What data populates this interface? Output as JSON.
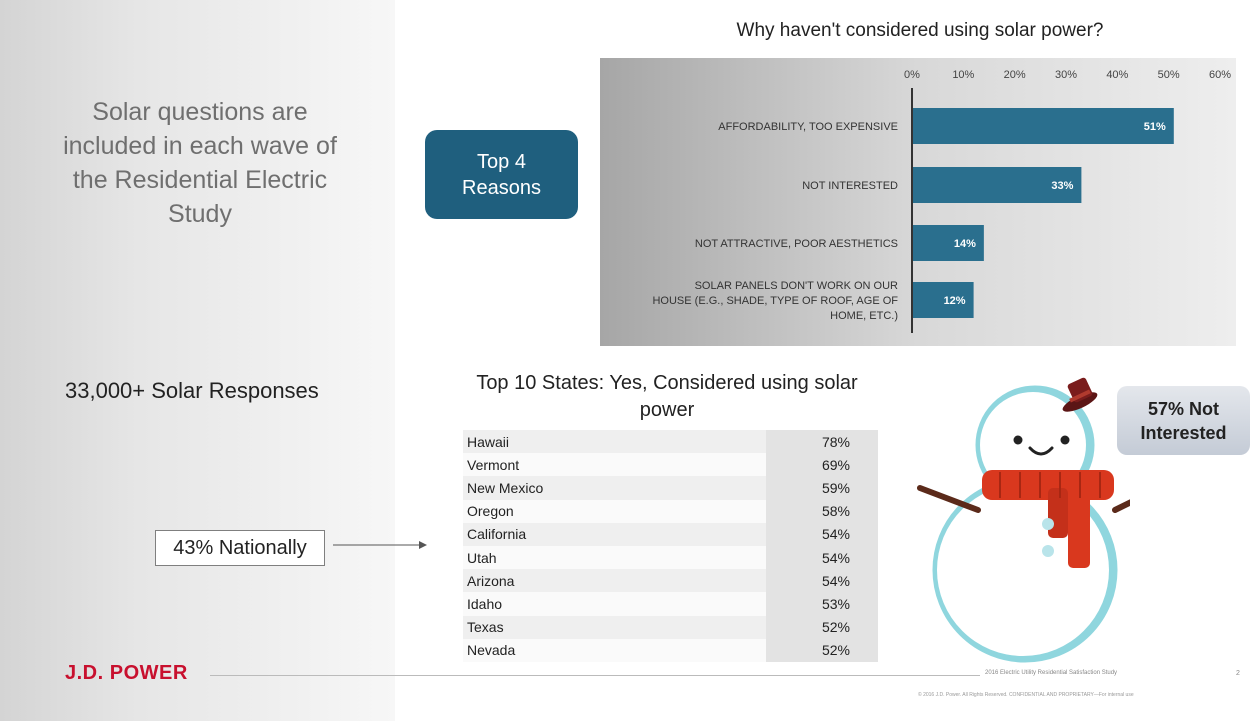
{
  "left": {
    "intro_lines": [
      "Solar questions are",
      "included in each wave of",
      "the Residential Electric",
      "Study"
    ],
    "responses": "33,000+ Solar Responses",
    "nationally": "43% Nationally"
  },
  "callout": {
    "line1": "Top 4",
    "line2": "Reasons"
  },
  "chart_data": {
    "type": "bar",
    "orientation": "horizontal",
    "title": "Why haven't considered using solar power?",
    "categories": [
      [
        "AFFORDABILITY, TOO EXPENSIVE"
      ],
      [
        "NOT INTERESTED"
      ],
      [
        "NOT ATTRACTIVE, POOR AESTHETICS"
      ],
      [
        "SOLAR PANELS DON'T WORK ON OUR",
        "HOUSE (E.G., SHADE, TYPE OF ROOF, AGE OF",
        "HOME, ETC.)"
      ]
    ],
    "values": [
      51,
      33,
      14,
      12
    ],
    "data_labels": [
      "51%",
      "33%",
      "14%",
      "12%"
    ],
    "xlim": [
      0,
      60
    ],
    "ticks": [
      "0%",
      "10%",
      "20%",
      "30%",
      "40%",
      "50%",
      "60%"
    ],
    "tick_values": [
      0,
      10,
      20,
      30,
      40,
      50,
      60
    ],
    "bar_color": "#2a6f8e",
    "legend": "none"
  },
  "states": {
    "title_line1": "Top 10 States: Yes, Considered using solar",
    "title_line2": "power",
    "rows": [
      {
        "state": "Hawaii",
        "value": "78%"
      },
      {
        "state": "Vermont",
        "value": "69%"
      },
      {
        "state": "New Mexico",
        "value": "59%"
      },
      {
        "state": "Oregon",
        "value": "58%"
      },
      {
        "state": "California",
        "value": "54%"
      },
      {
        "state": "Utah",
        "value": "54%"
      },
      {
        "state": "Arizona",
        "value": "54%"
      },
      {
        "state": "Idaho",
        "value": "53%"
      },
      {
        "state": "Texas",
        "value": "52%"
      },
      {
        "state": "Nevada",
        "value": "52%"
      }
    ]
  },
  "bubble": {
    "line1": "57% Not",
    "line2": "Interested"
  },
  "footer": {
    "logo": "J.D. POWER",
    "study": "2016 Electric Utility Residential Satisfaction Study",
    "page": "2",
    "copyright": "© 2016 J.D. Power. All Rights Reserved. CONFIDENTIAL AND PROPRIETARY—For internal use"
  },
  "colors": {
    "brand_red": "#c8102e",
    "callout_blue": "#1f5f7e",
    "bar_blue": "#2a6f8e",
    "scarf_red": "#d9381e",
    "snow_outline": "#8fd6de"
  }
}
